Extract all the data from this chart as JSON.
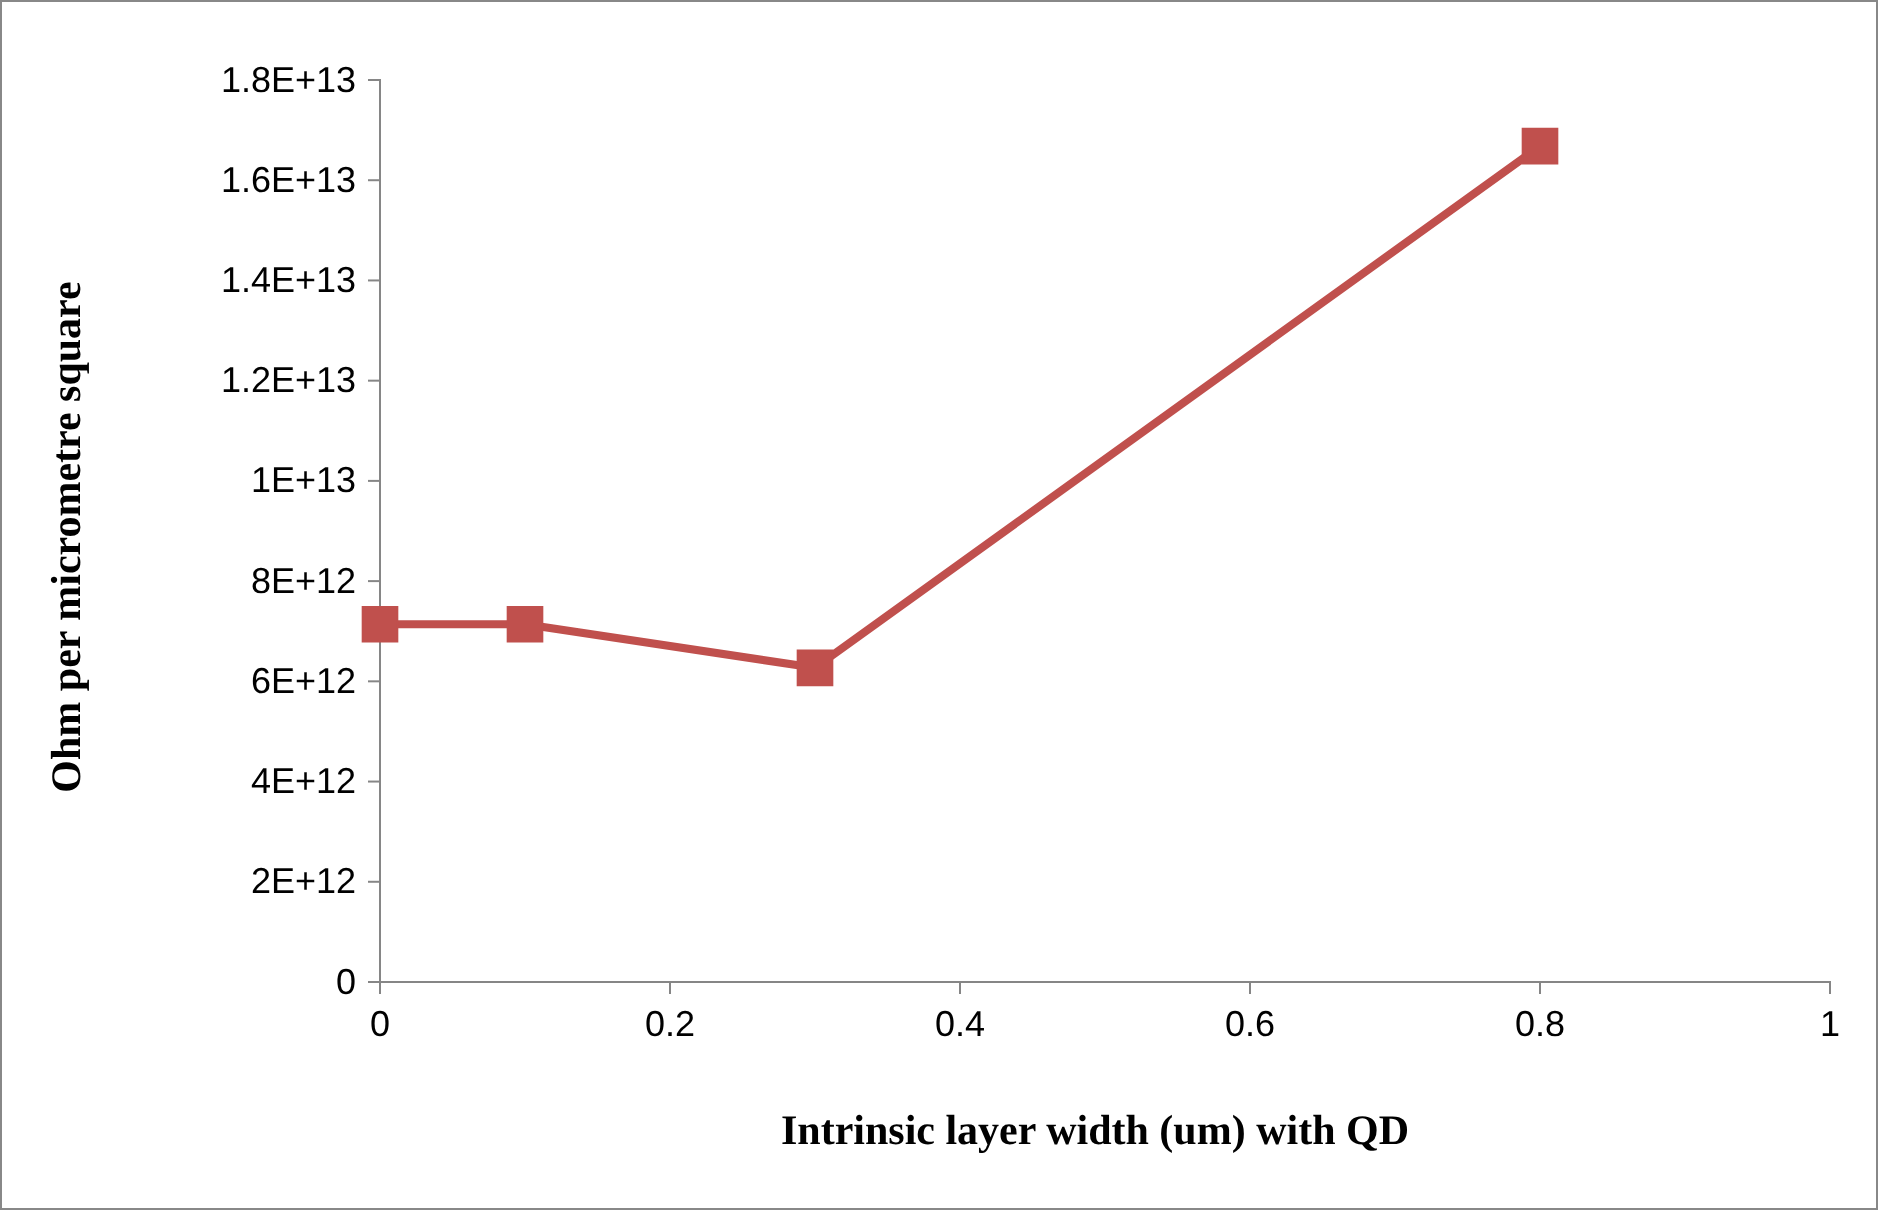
{
  "chart_data": {
    "type": "line",
    "xlabel": "Intrinsic layer width (um) with QD",
    "ylabel": "Ohm per micrometre square",
    "x": [
      0,
      0.1,
      0.3,
      0.8
    ],
    "series": [
      {
        "color": "#c0504d",
        "values": [
          7140000000000.0,
          7140000000000.0,
          6270000000000.0,
          16680000000000.0
        ]
      }
    ],
    "xlim": [
      0,
      1
    ],
    "xticks": [
      0,
      0.2,
      0.4,
      0.6,
      0.8,
      1
    ],
    "ylim": [
      0,
      18000000000000.0
    ],
    "yticks": [
      {
        "value": 0,
        "label": "0"
      },
      {
        "value": 2000000000000.0,
        "label": "2E+12"
      },
      {
        "value": 4000000000000.0,
        "label": "4E+12"
      },
      {
        "value": 6000000000000.0,
        "label": "6E+12"
      },
      {
        "value": 8000000000000.0,
        "label": "8E+12"
      },
      {
        "value": 10000000000000.0,
        "label": "1E+13"
      },
      {
        "value": 12000000000000.0,
        "label": "1.2E+13"
      },
      {
        "value": 14000000000000.0,
        "label": "1.4E+13"
      },
      {
        "value": 16000000000000.0,
        "label": "1.6E+13"
      },
      {
        "value": 18000000000000.0,
        "label": "1.8E+13"
      }
    ],
    "marker": "square",
    "line_style": "solid",
    "grid": false
  }
}
